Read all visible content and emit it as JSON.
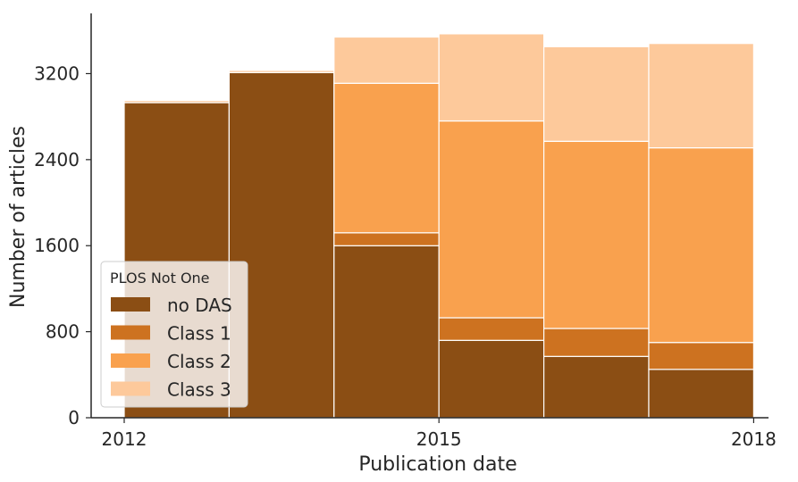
{
  "chart_data": {
    "type": "bar",
    "stacked": true,
    "categories": [
      "2012",
      "2013",
      "2014",
      "2015",
      "2016",
      "2017"
    ],
    "x_tick_labels": [
      "2012",
      "2015",
      "2018"
    ],
    "y_ticks": [
      0,
      800,
      1600,
      2400,
      3200
    ],
    "ylim": [
      0,
      3760
    ],
    "xlabel": "Publication date",
    "ylabel": "Number of articles",
    "legend": {
      "title": "PLOS Not One",
      "placement": "lower-left"
    },
    "series": [
      {
        "name": "no DAS",
        "color": "#8b4e14",
        "values": [
          2930,
          3210,
          1600,
          720,
          570,
          450
        ]
      },
      {
        "name": "Class 1",
        "color": "#cd7220",
        "values": [
          0,
          0,
          120,
          210,
          260,
          250
        ]
      },
      {
        "name": "Class 2",
        "color": "#f9a14e",
        "values": [
          0,
          0,
          1390,
          1830,
          1740,
          1810
        ]
      },
      {
        "name": "Class 3",
        "color": "#fdc99b",
        "values": [
          20,
          20,
          430,
          810,
          880,
          970
        ]
      }
    ],
    "grid": false
  }
}
